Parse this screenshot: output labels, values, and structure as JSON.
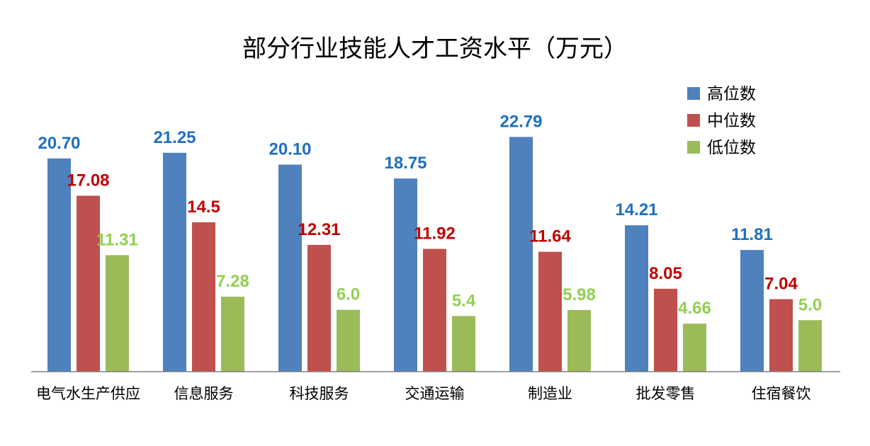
{
  "chart_data": {
    "type": "bar",
    "title": "部分行业技能人才工资水平（万元）",
    "categories": [
      "电气水生产供应",
      "信息服务",
      "科技服务",
      "交通运输",
      "制造业",
      "批发零售",
      "住宿餐饮"
    ],
    "series": [
      {
        "name": "高位数",
        "color": "#4F81BD",
        "label_color": "#1F6FBF",
        "values": [
          20.7,
          21.25,
          20.1,
          18.75,
          22.79,
          14.21,
          11.81
        ],
        "labels": [
          "20.70",
          "21.25",
          "20.10",
          "18.75",
          "22.79",
          "14.21",
          "11.81"
        ]
      },
      {
        "name": "中位数",
        "color": "#C0504D",
        "label_color": "#C00000",
        "values": [
          17.08,
          14.5,
          12.31,
          11.92,
          11.64,
          8.05,
          7.04
        ],
        "labels": [
          "17.08",
          "14.5",
          "12.31",
          "11.92",
          "11.64",
          "8.05",
          "7.04"
        ]
      },
      {
        "name": "低位数",
        "color": "#9BBB59",
        "label_color": "#92D050",
        "values": [
          11.31,
          7.28,
          6.0,
          5.4,
          5.98,
          4.66,
          5.0
        ],
        "labels": [
          "11.31",
          "7.28",
          "6.0",
          "5.4",
          "5.98",
          "4.66",
          "5.0"
        ]
      }
    ],
    "ylim": [
      0,
      25
    ],
    "grid": false,
    "legend_position": "top-right",
    "xlabel": "",
    "ylabel": ""
  }
}
